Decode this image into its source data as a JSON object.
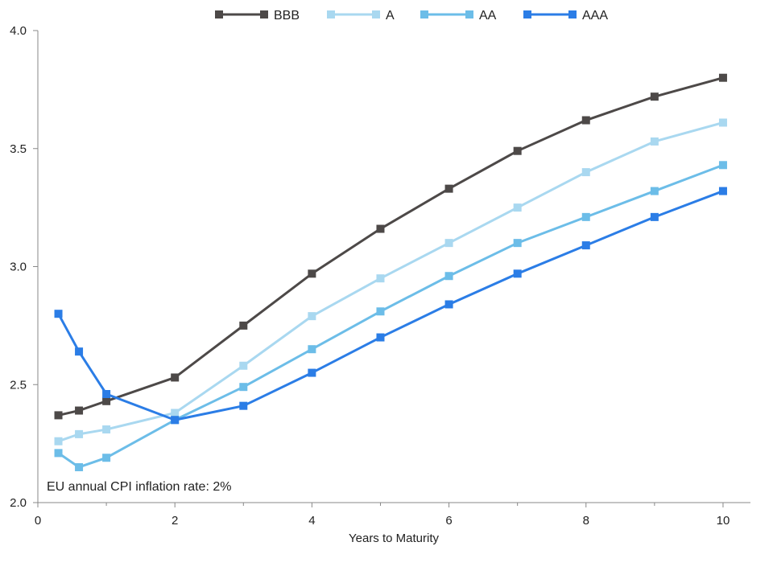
{
  "chart_data": {
    "type": "line",
    "title": "",
    "xlabel": "Years to Maturity",
    "ylabel": "",
    "xlim": [
      0,
      10.4
    ],
    "ylim": [
      2.0,
      4.0
    ],
    "x_ticks": [
      "0",
      "2",
      "4",
      "6",
      "8",
      "10"
    ],
    "y_ticks": [
      "2.0",
      "2.5",
      "3.0",
      "3.5",
      "4.0"
    ],
    "x_tick_values": [
      0,
      2,
      4,
      6,
      8,
      10
    ],
    "y_tick_values": [
      2.0,
      2.5,
      3.0,
      3.5,
      4.0
    ],
    "legend_position": "top",
    "annotation": "EU annual CPI inflation rate: 2%",
    "x": [
      0.3,
      0.6,
      1,
      2,
      3,
      4,
      5,
      6,
      7,
      8,
      9,
      10
    ],
    "series": [
      {
        "name": "BBB",
        "color": "#4d4948",
        "values": [
          2.37,
          2.39,
          2.43,
          2.53,
          2.75,
          2.97,
          3.16,
          3.33,
          3.49,
          3.62,
          3.72,
          3.8
        ]
      },
      {
        "name": "A",
        "color": "#a9d8f0",
        "values": [
          2.26,
          2.29,
          2.31,
          2.38,
          2.58,
          2.79,
          2.95,
          3.1,
          3.25,
          3.4,
          3.53,
          3.61
        ]
      },
      {
        "name": "AA",
        "color": "#6cbde8",
        "values": [
          2.21,
          2.15,
          2.19,
          2.35,
          2.49,
          2.65,
          2.81,
          2.96,
          3.1,
          3.21,
          3.32,
          3.43
        ]
      },
      {
        "name": "AAA",
        "color": "#2b7de6",
        "values": [
          2.8,
          2.64,
          2.46,
          2.35,
          2.41,
          2.55,
          2.7,
          2.84,
          2.97,
          3.09,
          3.21,
          3.32
        ]
      }
    ]
  }
}
